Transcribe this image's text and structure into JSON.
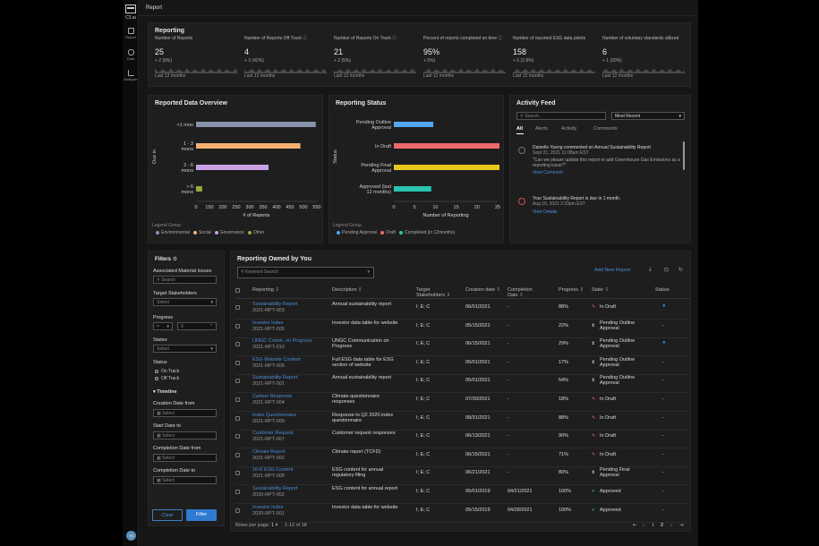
{
  "app": {
    "brand": "C3.ai",
    "page_title": "Report",
    "avatar": "TS"
  },
  "nav": [
    {
      "label": "Report"
    },
    {
      "label": "Data"
    },
    {
      "label": "Analyzer"
    }
  ],
  "reporting": {
    "title": "Reporting",
    "period": "Last 12 months",
    "kpis": [
      {
        "label": "Number of Reports",
        "value": "25",
        "change": "+ 2 (8%)",
        "info": false
      },
      {
        "label": "Number of Reports Off Track",
        "value": "4",
        "change": "+ 3 (42%)",
        "info": true
      },
      {
        "label": "Number of Reports On Track",
        "value": "21",
        "change": "+ 2 (5%)",
        "info": true
      },
      {
        "label": "Percent of reports completed on time",
        "value": "95%",
        "change": "+ 5%)",
        "info": true
      },
      {
        "label": "Number of reported ESG data points",
        "value": "158",
        "change": "+ 5 (2.8%)",
        "info": false
      },
      {
        "label": "Number of voluntary standards utilized",
        "value": "6",
        "change": "+ 1 (20%)",
        "info": false
      }
    ]
  },
  "overview": {
    "title": "Reported Data Overview",
    "legend_title": "Legend Group",
    "legend": [
      {
        "name": "Environmental",
        "color": "#8a93ad"
      },
      {
        "name": "Social",
        "color": "#f5b072"
      },
      {
        "name": "Governance",
        "color": "#c9a0e6"
      },
      {
        "name": "Other",
        "color": "#9aa83d"
      }
    ]
  },
  "status": {
    "title": "Reporting Status",
    "legend_title": "Legend Group",
    "legend": [
      {
        "name": "Pending Approval",
        "color": "#53a7ef"
      },
      {
        "name": "Draft",
        "color": "#ee6a6a"
      },
      {
        "name": "Completed (in 12months)",
        "color": "#2bc4b0"
      }
    ]
  },
  "chart_data": [
    {
      "type": "bar",
      "orientation": "horizontal",
      "categories": [
        "<1 mon",
        "1 - 3 mons",
        "3 - 6 mons",
        "> 6 mons"
      ],
      "values": [
        545,
        475,
        330,
        28
      ],
      "colors": [
        "#8a93ad",
        "#f5b072",
        "#c9a0e6",
        "#9aa83d"
      ],
      "xlabel": "# of Reports",
      "ylabel": "Due in",
      "xlim": [
        0,
        550
      ],
      "xticks": [
        "0",
        "150",
        "200",
        "250",
        "300",
        "350",
        "400",
        "450",
        "500",
        "550"
      ]
    },
    {
      "type": "bar",
      "orientation": "horizontal",
      "categories": [
        "Pending Outline Approval",
        "In Draft",
        "Pending Final Approval",
        "Approved (last 12 months)"
      ],
      "values": [
        9.5,
        25.5,
        25.5,
        9
      ],
      "colors": [
        "#53a7ef",
        "#ee6a6a",
        "#e8c81a",
        "#2bc4b0"
      ],
      "xlabel": "Number of Reporting",
      "ylabel": "Status",
      "xlim": [
        0,
        25
      ],
      "xticks": [
        "0",
        "5",
        "10",
        "15",
        "20",
        "25"
      ]
    }
  ],
  "activity": {
    "title": "Activity Feed",
    "search_placeholder": "Search...",
    "sort": "Most Recent",
    "tabs": [
      "All",
      "Alerts",
      "Activity",
      "Comments"
    ],
    "items": [
      {
        "title": "Danielle Yueng commented on Annual Sustainability Report",
        "date": "Sept 21, 2021 11:08am EST",
        "quote": "\"Can we please update this report to add Greenhouse Gas Emissions as a reporting issue?\"",
        "link": "View Comment"
      },
      {
        "title": "Your Sustainability Report is due in 1 month.",
        "date": "Aug 10, 2021 2:33pm EST",
        "quote": "",
        "link": "View Details"
      }
    ]
  },
  "filters": {
    "title": "Filters",
    "material": {
      "label": "Associated Material Issues",
      "placeholder": "Search"
    },
    "stakeholders": {
      "label": "Target Stakeholders",
      "placeholder": "Select"
    },
    "progress": {
      "label": "Progress",
      "op": "=",
      "value": "0"
    },
    "states": {
      "label": "States",
      "placeholder": "Select"
    },
    "status": {
      "label": "Status",
      "options": [
        "On Track",
        "Off Track"
      ]
    },
    "timeline": {
      "label": "Timeline",
      "creation_from": "Creation Date from",
      "start_to": "Start Date to",
      "completion_from": "Completion Date from",
      "completion_to": "Completion Date to",
      "placeholder": "Select"
    },
    "clear": "Clear",
    "filter": "Filter"
  },
  "table": {
    "title": "Reporting Owned by You",
    "search_placeholder": "Keyword Search",
    "add": "Add New Report",
    "columns": [
      "Reporting",
      "Description",
      "Target Stakeholders",
      "Creation date",
      "Completion Date",
      "Progress",
      "State",
      "Status"
    ],
    "rows": [
      {
        "name": "Sustainability Report",
        "id": "2021-RPT-003",
        "desc": "Annual sustainability report",
        "stake": "I; E; C",
        "created": "06/01/2021",
        "completed": "-",
        "progress": "88%",
        "state": "In Draft",
        "state_icon": "pencil-icon",
        "status": "drop-icon"
      },
      {
        "name": "Investor Index",
        "id": "2021-RPT-005",
        "desc": "Investor data table for website",
        "stake": "I; E; C",
        "created": "05/15/2021",
        "completed": "-",
        "progress": "22%",
        "state": "Pending Outline Approval",
        "state_icon": "hourglass-icon",
        "status": "-"
      },
      {
        "name": "UNGC Comm. on Progress",
        "id": "2021-RPT-010",
        "desc": "UNGC Communication on Progress",
        "stake": "I; E; C",
        "created": "06/15/2021",
        "completed": "-",
        "progress": "29%",
        "state": "Pending Outline Approval",
        "state_icon": "hourglass-icon",
        "status": "drop-icon"
      },
      {
        "name": "ESG Website Content",
        "id": "2021-RPT-006",
        "desc": "Full ESG data table for ESG section of website",
        "stake": "I; E; C",
        "created": "05/01/2021",
        "completed": "-",
        "progress": "17%",
        "state": "Pending Outline Approval",
        "state_icon": "hourglass-icon",
        "status": "-"
      },
      {
        "name": "Sustainability Report",
        "id": "2021-RPT-001",
        "desc": "Annual sustainability report",
        "stake": "I; E; C",
        "created": "05/01/2021",
        "completed": "-",
        "progress": "54%",
        "state": "Pending Outline Approval",
        "state_icon": "hourglass-icon",
        "status": "-"
      },
      {
        "name": "Carbon Response",
        "id": "2021-RPT-004",
        "desc": "Climate questionnaire responses",
        "stake": "I; E; C",
        "created": "07/30/2021",
        "completed": "-",
        "progress": "18%",
        "state": "In Draft",
        "state_icon": "pencil-icon",
        "status": "-"
      },
      {
        "name": "Index Questionnaire",
        "id": "2021-RPT-009",
        "desc": "Response to Q2 2020 index questionnaire",
        "stake": "I; E; C",
        "created": "08/31/2021",
        "completed": "-",
        "progress": "88%",
        "state": "In Draft",
        "state_icon": "pencil-icon",
        "status": "-"
      },
      {
        "name": "Customer Request",
        "id": "2021-RPT-007",
        "desc": "Customer request responses",
        "stake": "I; E; C",
        "created": "06/13/2021",
        "completed": "-",
        "progress": "90%",
        "state": "In Draft",
        "state_icon": "pencil-icon",
        "status": "-"
      },
      {
        "name": "Climate Report",
        "id": "2021-RPT-002",
        "desc": "Climate report (TCFD)",
        "stake": "I; E; C",
        "created": "06/15/2021",
        "completed": "-",
        "progress": "71%",
        "state": "In Draft",
        "state_icon": "pencil-icon",
        "status": "-"
      },
      {
        "name": "10-K ESG Content",
        "id": "2021-RPT-008",
        "desc": "ESG content for annual regulatory filing",
        "stake": "I; E; C",
        "created": "06/21/2021",
        "completed": "-",
        "progress": "80%",
        "state": "Pending Final Approval",
        "state_icon": "hourglass-icon",
        "status": "-"
      },
      {
        "name": "Sustainability Report",
        "id": "2020-RPT-002",
        "desc": "ESG content for annual report",
        "stake": "I; E; C",
        "created": "05/01/2019",
        "completed": "04/21/2021",
        "progress": "100%",
        "state": "Approved",
        "state_icon": "check-icon",
        "status": "-"
      },
      {
        "name": "Investor Index",
        "id": "2020-RPT-001",
        "desc": "Investor data table for website",
        "stake": "I; E; C",
        "created": "05/15/2019",
        "completed": "04/28/2021",
        "progress": "100%",
        "state": "Approved",
        "state_icon": "check-icon",
        "status": "-"
      }
    ],
    "rows_per_page_label": "Rows per page:",
    "rows_per_page": "1",
    "range": "1-12 of 18",
    "pages": [
      "1",
      "2"
    ]
  }
}
